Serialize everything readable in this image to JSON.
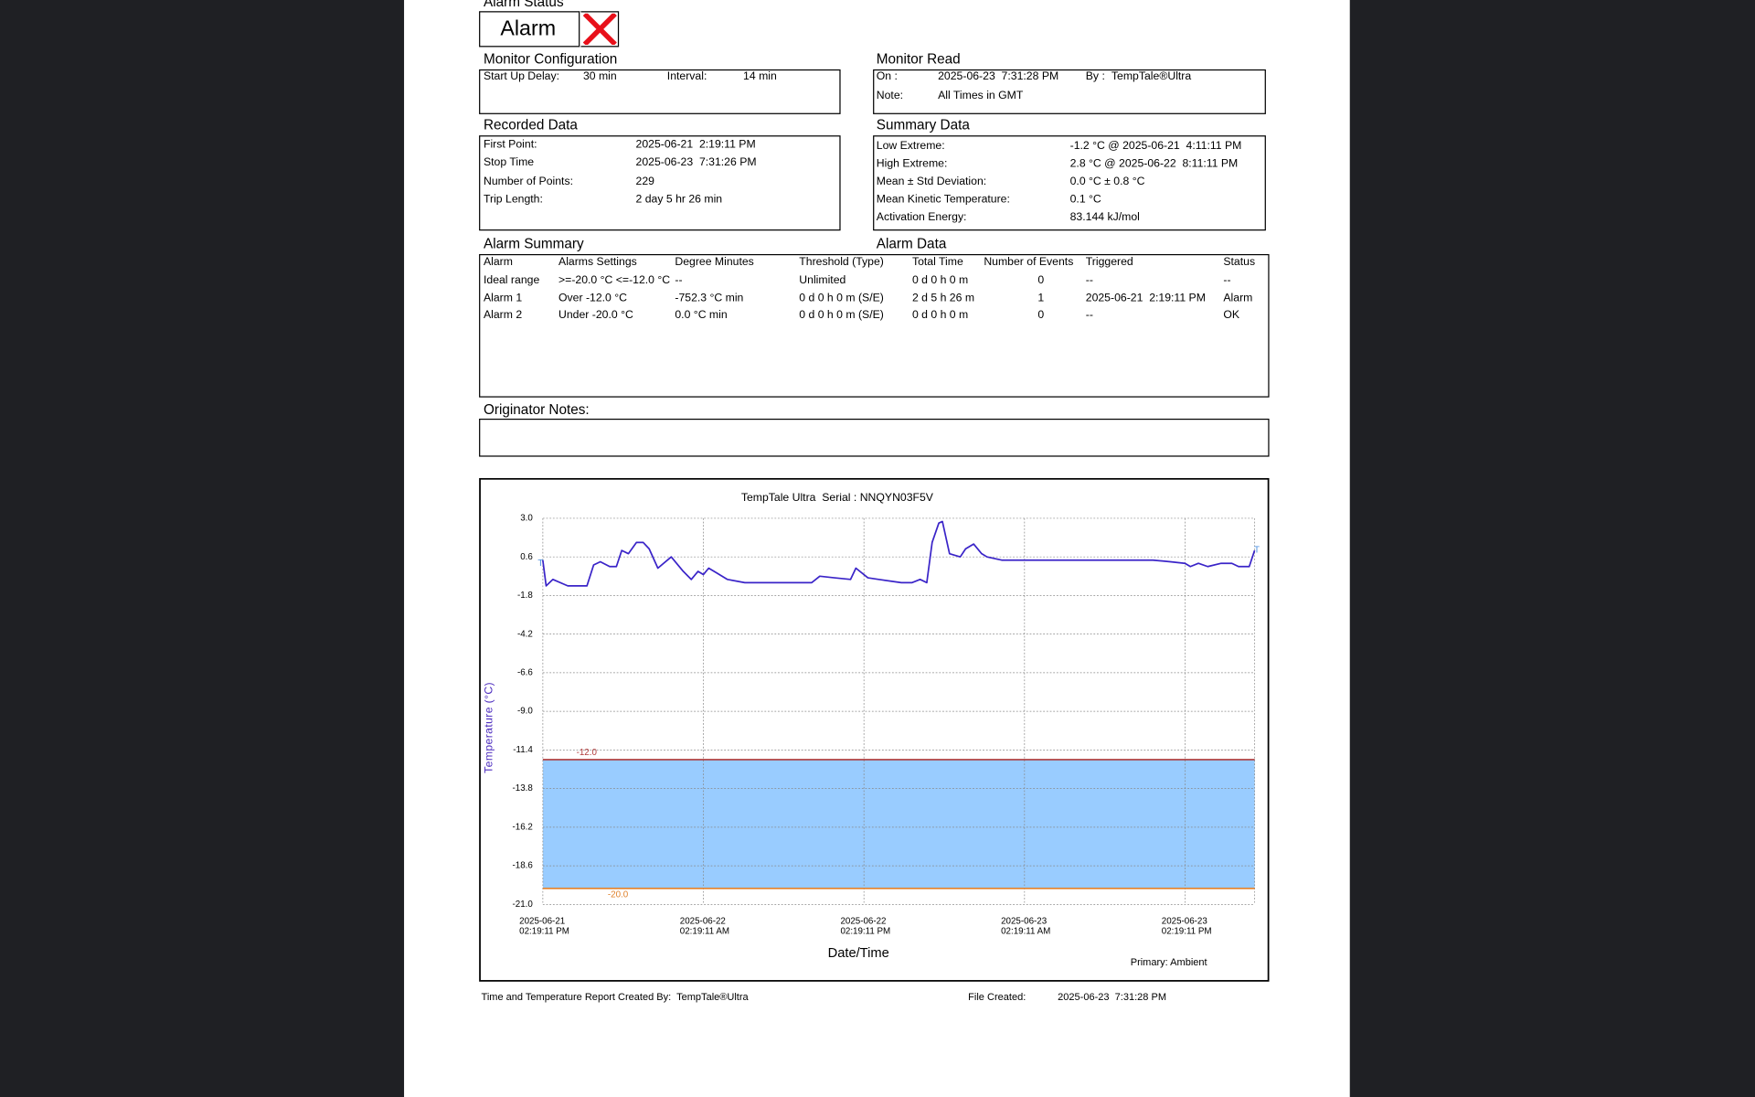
{
  "alarm_status": {
    "heading": "Alarm Status",
    "state": "Alarm"
  },
  "monitor_configuration": {
    "heading": "Monitor Configuration",
    "fields": [
      [
        "Start Up Delay:",
        "30 min"
      ],
      [
        "Interval:",
        "14 min"
      ]
    ]
  },
  "monitor_read": {
    "heading": "Monitor Read",
    "on_label": "On :",
    "on": "2025-06-23  7:31:28 PM",
    "by_label": "By :",
    "by": "TempTale®Ultra",
    "note_label": "Note:",
    "note": "All Times in GMT"
  },
  "recorded_data": {
    "heading": "Recorded Data",
    "fields": [
      [
        "First Point:",
        "2025-06-21  2:19:11 PM"
      ],
      [
        "Stop Time",
        "2025-06-23  7:31:26 PM"
      ],
      [
        "Number of Points:",
        "229"
      ],
      [
        "Trip Length:",
        "2 day 5 hr 26 min"
      ]
    ]
  },
  "summary_data": {
    "heading": "Summary Data",
    "fields": [
      [
        "Low Extreme:",
        "-1.2 °C @ 2025-06-21  4:11:11 PM"
      ],
      [
        "High Extreme:",
        "2.8 °C @ 2025-06-22  8:11:11 PM"
      ],
      [
        "Mean ± Std Deviation:",
        "0.0 °C ± 0.8 °C"
      ],
      [
        "Mean Kinetic Temperature:",
        "0.1 °C"
      ],
      [
        "Activation Energy:",
        "83.144 kJ/mol"
      ]
    ]
  },
  "alarm_summary": {
    "heading": "Alarm Summary",
    "data_heading": "Alarm Data",
    "columns": [
      "Alarm",
      "Alarms Settings",
      "Degree Minutes",
      "Threshold (Type)",
      "Total Time",
      "Number of Events",
      "Triggered",
      "Status"
    ],
    "rows": [
      [
        "Ideal range",
        ">=-20.0 °C <=-12.0 °C",
        "--",
        "Unlimited",
        "0 d 0 h 0 m",
        "0",
        "--",
        "--"
      ],
      [
        "Alarm 1",
        "Over -12.0 °C",
        "-752.3 °C min",
        "0 d 0 h 0 m (S/E)",
        "2 d 5 h 26 m",
        "1",
        "2025-06-21  2:19:11 PM",
        "Alarm"
      ],
      [
        "Alarm 2",
        "Under -20.0 °C",
        "0.0 °C min",
        "0 d 0 h 0 m (S/E)",
        "0 d 0 h 0 m",
        "0",
        "--",
        "OK"
      ]
    ]
  },
  "originator_notes": {
    "heading": "Originator Notes:"
  },
  "footer": {
    "created_by": "Time and Temperature Report Created By:  TempTale®Ultra",
    "file_created_label": "File Created:",
    "file_created": "2025-06-23  7:31:28 PM"
  },
  "chart_data": {
    "type": "line",
    "title": "TempTale Ultra  Serial : NNQYN03F5V",
    "y_label": "Temperature (°C)",
    "x_label": "Date/Time",
    "note": "Primary: Ambient",
    "color": "#3a24c8",
    "x": [
      "2025-06-21 14:19",
      "2025-06-21 14:34",
      "2025-06-21 15:04",
      "2025-06-21 16:11",
      "2025-06-21 17:37",
      "2025-06-21 18:07",
      "2025-06-21 18:37",
      "2025-06-21 19:19",
      "2025-06-21 19:49",
      "2025-06-21 20:13",
      "2025-06-21 20:43",
      "2025-06-21 21:19",
      "2025-06-21 21:49",
      "2025-06-21 22:16",
      "2025-06-21 22:55",
      "2025-06-21 23:55",
      "2025-06-22 00:49",
      "2025-06-22 01:25",
      "2025-06-22 01:55",
      "2025-06-22 02:19",
      "2025-06-22 02:43",
      "2025-06-22 03:19",
      "2025-06-22 04:07",
      "2025-06-22 05:25",
      "2025-06-22 07:31",
      "2025-06-22 10:25",
      "2025-06-22 11:01",
      "2025-06-22 12:07",
      "2025-06-22 13:19",
      "2025-06-22 13:43",
      "2025-06-22 14:37",
      "2025-06-22 15:25",
      "2025-06-22 17:07",
      "2025-06-22 17:55",
      "2025-06-22 18:31",
      "2025-06-22 19:01",
      "2025-06-22 19:25",
      "2025-06-22 19:55",
      "2025-06-22 20:11",
      "2025-06-22 20:43",
      "2025-06-22 21:31",
      "2025-06-22 21:55",
      "2025-06-22 22:31",
      "2025-06-22 23:07",
      "2025-06-22 23:31",
      "2025-06-23 00:37",
      "2025-06-23 11:55",
      "2025-06-23 13:13",
      "2025-06-23 14:19",
      "2025-06-23 14:43",
      "2025-06-23 15:19",
      "2025-06-23 16:01",
      "2025-06-23 17:01",
      "2025-06-23 17:49",
      "2025-06-23 18:19",
      "2025-06-23 19:07",
      "2025-06-23 19:31"
    ],
    "values": [
      0.4,
      -1.2,
      -0.8,
      -1.2,
      -1.2,
      0.1,
      0.3,
      0.0,
      0.0,
      1.0,
      0.8,
      1.5,
      1.5,
      1.1,
      -0.1,
      0.6,
      -0.3,
      -0.8,
      -0.3,
      -0.5,
      -0.1,
      -0.4,
      -0.8,
      -1.0,
      -1.0,
      -1.0,
      -0.6,
      -0.7,
      -0.8,
      -0.1,
      -0.7,
      -0.8,
      -1.0,
      -1.0,
      -0.8,
      -1.0,
      1.5,
      2.7,
      2.8,
      0.8,
      0.6,
      1.1,
      1.4,
      0.8,
      0.6,
      0.4,
      0.4,
      0.3,
      0.2,
      0.0,
      0.2,
      0.0,
      0.2,
      0.2,
      0.0,
      0.0,
      1.0
    ],
    "xlim": [
      "2025-06-21 14:19:11",
      "2025-06-23 19:31:26"
    ],
    "xticks": [
      {
        "value": "2025-06-21 14:19:11",
        "label": [
          "2025-06-21",
          "02:19:11 PM"
        ]
      },
      {
        "value": "2025-06-22 02:19:11",
        "label": [
          "2025-06-22",
          "02:19:11 AM"
        ]
      },
      {
        "value": "2025-06-22 14:19:11",
        "label": [
          "2025-06-22",
          "02:19:11 PM"
        ]
      },
      {
        "value": "2025-06-23 02:19:11",
        "label": [
          "2025-06-23",
          "02:19:11 AM"
        ]
      },
      {
        "value": "2025-06-23 14:19:11",
        "label": [
          "2025-06-23",
          "02:19:11 PM"
        ]
      }
    ],
    "ylim": [
      -21,
      3
    ],
    "yticks": [
      {
        "value": 3,
        "label": "3.0"
      },
      {
        "value": 0.6,
        "label": "0.6"
      },
      {
        "value": -1.8,
        "label": "-1.8"
      },
      {
        "value": -4.2,
        "label": "-4.2"
      },
      {
        "value": -6.6,
        "label": "-6.6"
      },
      {
        "value": -9,
        "label": "-9.0"
      },
      {
        "value": -11.4,
        "label": "-11.4"
      },
      {
        "value": -13.8,
        "label": "-13.8"
      },
      {
        "value": -16.2,
        "label": "-16.2"
      },
      {
        "value": -18.6,
        "label": "-18.6"
      },
      {
        "value": -21,
        "label": "-21.0"
      }
    ],
    "grid": true,
    "thresholds": [
      {
        "value": -12,
        "label": "-12.0",
        "color": "#b03a3a"
      },
      {
        "value": -20,
        "label": "-20.0",
        "color": "#e0802a"
      }
    ],
    "band_color": "#99ccff",
    "trip_markers": [
      "T",
      "T"
    ]
  }
}
